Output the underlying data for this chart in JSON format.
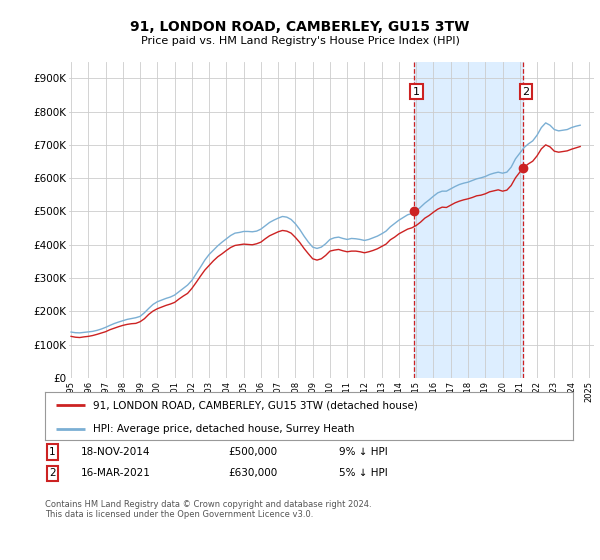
{
  "title": "91, LONDON ROAD, CAMBERLEY, GU15 3TW",
  "subtitle": "Price paid vs. HM Land Registry's House Price Index (HPI)",
  "ylim": [
    0,
    950000
  ],
  "yticks": [
    0,
    100000,
    200000,
    300000,
    400000,
    500000,
    600000,
    700000,
    800000,
    900000
  ],
  "ytick_labels": [
    "£0",
    "£100K",
    "£200K",
    "£300K",
    "£400K",
    "£500K",
    "£600K",
    "£700K",
    "£800K",
    "£900K"
  ],
  "background_color": "#ffffff",
  "plot_bg_color": "#ffffff",
  "grid_color": "#cccccc",
  "hpi_color": "#7bafd4",
  "price_color": "#cc2222",
  "transaction1": {
    "date_idx": 2014.88,
    "price": 500000,
    "label": "1"
  },
  "transaction2": {
    "date_idx": 2021.21,
    "price": 630000,
    "label": "2"
  },
  "vline_color": "#cc2222",
  "shade_color": "#ddeeff",
  "legend_label_red": "91, LONDON ROAD, CAMBERLEY, GU15 3TW (detached house)",
  "legend_label_blue": "HPI: Average price, detached house, Surrey Heath",
  "table_row1": [
    "1",
    "18-NOV-2014",
    "£500,000",
    "9% ↓ HPI"
  ],
  "table_row2": [
    "2",
    "16-MAR-2021",
    "£630,000",
    "5% ↓ HPI"
  ],
  "footer": "Contains HM Land Registry data © Crown copyright and database right 2024.\nThis data is licensed under the Open Government Licence v3.0.",
  "hpi_monthly": [
    138000,
    136000,
    135500,
    137000,
    138500,
    140000,
    143000,
    147000,
    152000,
    158000,
    163500,
    168000,
    172000,
    176000,
    178500,
    181000,
    185000,
    196000,
    209000,
    221000,
    229000,
    234000,
    239000,
    243000,
    249000,
    259000,
    269000,
    279000,
    293000,
    313000,
    333000,
    354000,
    371000,
    384000,
    397000,
    408000,
    418000,
    428000,
    435000,
    437000,
    440000,
    440000,
    439000,
    441000,
    447000,
    457000,
    467000,
    474000,
    480000,
    485000,
    483000,
    476000,
    463000,
    446000,
    426000,
    408000,
    393000,
    389000,
    393000,
    403000,
    416000,
    421000,
    423000,
    419000,
    416000,
    419000,
    418000,
    416000,
    413000,
    416000,
    421000,
    426000,
    433000,
    441000,
    454000,
    464000,
    474000,
    482000,
    490000,
    494000,
    501000,
    513000,
    525000,
    535000,
    546000,
    556000,
    561000,
    561000,
    568000,
    575000,
    581000,
    585000,
    588000,
    593000,
    598000,
    601000,
    605000,
    611000,
    615000,
    618000,
    615000,
    618000,
    633000,
    658000,
    675000,
    692000,
    703000,
    712000,
    729000,
    752000,
    766000,
    759000,
    746000,
    742000,
    744000,
    746000,
    752000,
    756000,
    759000
  ],
  "price_monthly": [
    125000,
    122500,
    121500,
    123500,
    125000,
    127500,
    131000,
    135000,
    139000,
    145000,
    149500,
    154000,
    158000,
    161000,
    163000,
    164000,
    169000,
    178000,
    191000,
    201000,
    208000,
    213000,
    218000,
    222000,
    227000,
    237000,
    246000,
    254000,
    269000,
    287000,
    306000,
    324000,
    338000,
    352000,
    364000,
    373000,
    383000,
    392000,
    398000,
    400000,
    402000,
    401000,
    400000,
    403000,
    408000,
    418000,
    427000,
    433000,
    439000,
    443000,
    441000,
    435000,
    422000,
    407000,
    389000,
    373000,
    358000,
    354000,
    358000,
    368000,
    381000,
    384000,
    386000,
    382000,
    379000,
    381000,
    381000,
    379000,
    376000,
    379000,
    383000,
    388000,
    395000,
    402000,
    415000,
    423000,
    433000,
    440000,
    447000,
    451000,
    458000,
    468000,
    480000,
    488000,
    498000,
    507000,
    513000,
    512000,
    519000,
    526000,
    531000,
    535000,
    538000,
    542000,
    547000,
    549000,
    553000,
    559000,
    562000,
    565000,
    561000,
    564000,
    578000,
    601000,
    618000,
    633000,
    643000,
    651000,
    667000,
    688000,
    700000,
    694000,
    681000,
    678000,
    680000,
    682000,
    687000,
    691000,
    695000
  ],
  "start_year": 1995.0,
  "year_step": 0.25
}
